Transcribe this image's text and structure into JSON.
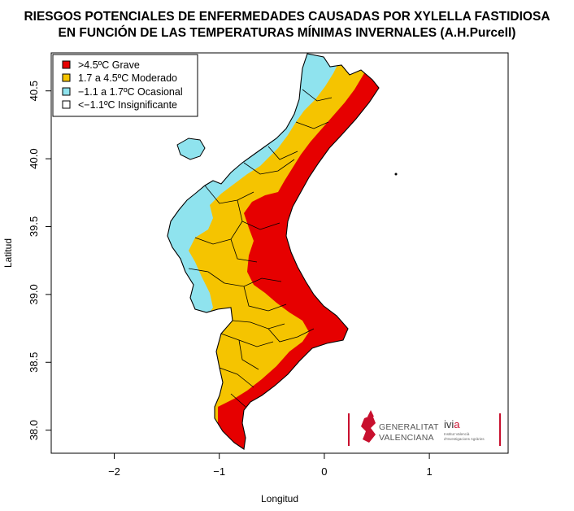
{
  "title_line1": "RIESGOS POTENCIALES DE ENFERMEDADES CAUSADAS POR XYLELLA FASTIDIOSA",
  "title_line2": "EN FUNCIÓN DE LAS TEMPERATURAS MÍNIMAS INVERNALES (A.H.Purcell)",
  "axes": {
    "xlabel": "Longitud",
    "ylabel": "Latitud",
    "xlim": [
      -2.6,
      1.75
    ],
    "ylim": [
      37.83,
      40.78
    ],
    "x_ticks": [
      -2,
      -1,
      0,
      1
    ],
    "x_tick_labels": [
      "−2",
      "−1",
      "0",
      "1"
    ],
    "y_ticks": [
      38.0,
      38.5,
      39.0,
      39.5,
      40.0,
      40.5
    ],
    "y_tick_labels": [
      "38.0",
      "38.5",
      "39.0",
      "39.5",
      "40.0",
      "40.5"
    ]
  },
  "legend": {
    "position": "top-left",
    "items": [
      {
        "label": ">4.5ºC  Grave",
        "color": "#e60000"
      },
      {
        "label": "1.7 a 4.5ºC  Moderado",
        "color": "#f5c400"
      },
      {
        "label": "−1.1 a 1.7ºC  Ocasional",
        "color": "#8fe3ee"
      },
      {
        "label": "<−1.1ºC  Insignificante",
        "color": "#ffffff"
      }
    ]
  },
  "logos": {
    "generalitat_line1": "GENERALITAT",
    "generalitat_line2": "VALENCIANA",
    "ivia_prefix": "ivi",
    "ivia_accent": "a",
    "ivia_line1": "Institut Valencià",
    "ivia_line2": "d'Investigacions Agràries",
    "accent_color": "#c8102e"
  },
  "colors": {
    "grave": "#e60000",
    "moderado": "#f5c400",
    "ocasional": "#8fe3ee",
    "insignificante": "#ffffff",
    "border": "#000000"
  }
}
